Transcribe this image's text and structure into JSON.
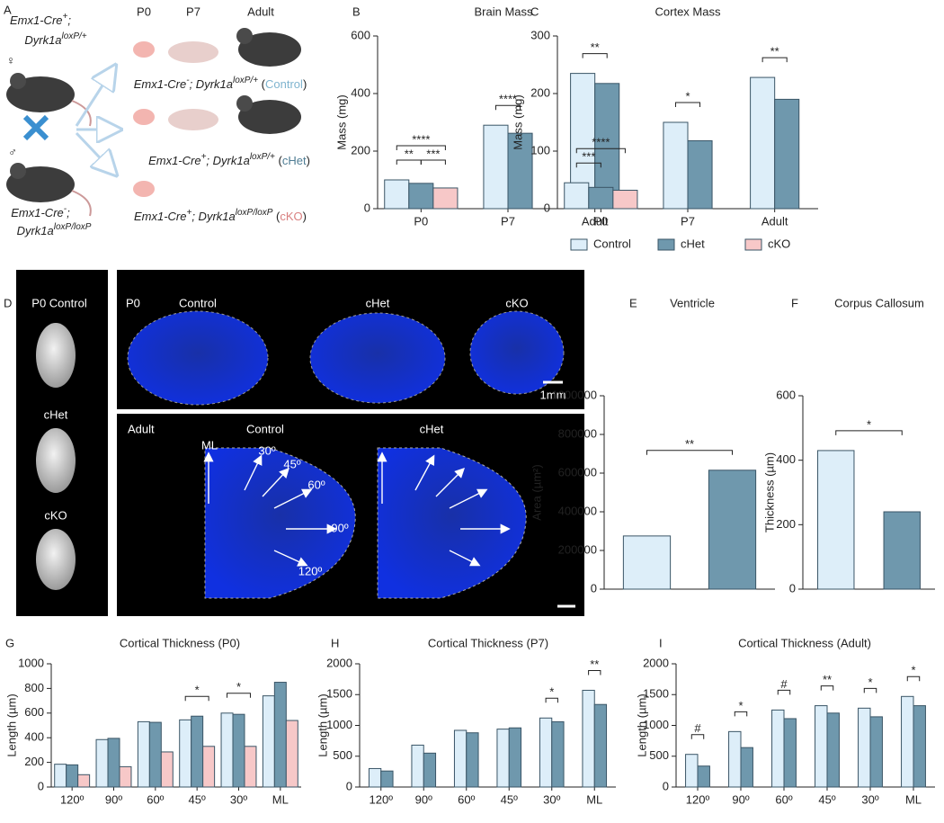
{
  "panel_a": {
    "label": "A",
    "ages": [
      "P0",
      "P7",
      "Adult"
    ],
    "female_symbol": "♀",
    "male_symbol": "♂",
    "female": [
      [
        "Emx1-Cre",
        "+",
        ";"
      ],
      [
        "Dyrk1a",
        "loxP/+"
      ]
    ],
    "male": [
      [
        "Emx1-Cre",
        "-",
        ";"
      ],
      [
        "Dyrk1a",
        "loxP/loxP"
      ]
    ],
    "offspring": [
      {
        "genotype": [
          "Emx1-Cre",
          "-",
          "; Dyrk1a",
          "loxP/+"
        ],
        "open": " (",
        "group": "Control",
        "close": ")",
        "color": "#7fb4cf"
      },
      {
        "genotype": [
          "Emx1-Cre",
          "+",
          "; Dyrk1a",
          "loxP/+"
        ],
        "open": " (",
        "group": "cHet",
        "close": ")",
        "color": "#4f7d94"
      },
      {
        "genotype": [
          "Emx1-Cre",
          "+",
          "; Dyrk1a",
          "loxP/loxP"
        ],
        "open": " (",
        "group": "cKO",
        "close": ")",
        "color": "#d98080"
      }
    ]
  },
  "panel_d": {
    "label": "D",
    "whole_brain": [
      "P0 Control",
      "cHet",
      "cKO"
    ],
    "p0_sections": {
      "age": "P0",
      "groups": [
        "Control",
        "cHet",
        "cKO"
      ],
      "scale": "1mm"
    },
    "adult_sections": {
      "age": "Adult",
      "groups": [
        "Control",
        "cHet"
      ],
      "angles": [
        "ML",
        "30º",
        "45º",
        "60º",
        "90º",
        "120º"
      ]
    }
  },
  "chart_data": [
    {
      "label": "B",
      "type": "bar",
      "title": "Brain Mass",
      "y_label": "Mass (mg)",
      "categories": [
        "P0",
        "P7",
        "Adult"
      ],
      "series": [
        {
          "color": "#ddeef9",
          "values": [
            100,
            290,
            470
          ]
        },
        {
          "color": "#6f98ad",
          "values": [
            88,
            262,
            435
          ]
        },
        {
          "color": "#f7c8c8",
          "values": [
            72,
            null,
            null
          ]
        }
      ],
      "ylim": [
        0,
        600
      ],
      "yticks": [
        0,
        200,
        400,
        600
      ],
      "annotations": [
        "**",
        "****",
        "****",
        "**",
        "***"
      ]
    },
    {
      "label": "C",
      "type": "bar",
      "title": "Cortex Mass",
      "y_label": "Mass (mg)",
      "categories": [
        "P0",
        "P7",
        "Adult"
      ],
      "series": [
        {
          "name": "Control",
          "color": "#ddeef9",
          "values": [
            45,
            150,
            228
          ]
        },
        {
          "name": "cHet",
          "color": "#6f98ad",
          "values": [
            37,
            118,
            190
          ]
        },
        {
          "name": "cKO",
          "color": "#f7c8c8",
          "values": [
            32,
            null,
            null
          ]
        }
      ],
      "ylim": [
        0,
        300
      ],
      "yticks": [
        0,
        100,
        200,
        300
      ],
      "legend": "bottom",
      "annotations": [
        "****",
        "***",
        "*",
        "**"
      ]
    },
    {
      "label": "E",
      "type": "bar",
      "title": "Ventricle",
      "y_label": "Area (µm²)",
      "categories": [
        null,
        null
      ],
      "values": [
        275000,
        615000
      ],
      "colors": [
        "#ddeef9",
        "#6f98ad"
      ],
      "ylim": [
        0,
        1000000
      ],
      "yticks": [
        0,
        200000,
        400000,
        600000,
        800000,
        1000000
      ],
      "annotations": [
        "**"
      ]
    },
    {
      "label": "F",
      "type": "bar",
      "title": "Corpus Callosum",
      "y_label": "Thickness (µm)",
      "categories": [
        null,
        null
      ],
      "values": [
        430,
        240
      ],
      "colors": [
        "#ddeef9",
        "#6f98ad"
      ],
      "ylim": [
        0,
        600
      ],
      "yticks": [
        0,
        200,
        400,
        600
      ],
      "annotations": [
        "*"
      ]
    },
    {
      "label": "G",
      "type": "bar",
      "title": "Cortical Thickness (P0)",
      "y_label": "Length (µm)",
      "categories": [
        "120º",
        "90º",
        "60º",
        "45º",
        "30º",
        "ML"
      ],
      "series": [
        {
          "color": "#ddeef9",
          "values": [
            185,
            385,
            530,
            545,
            600,
            740
          ]
        },
        {
          "color": "#6f98ad",
          "values": [
            180,
            395,
            525,
            575,
            590,
            850
          ]
        },
        {
          "color": "#f7c8c8",
          "values": [
            100,
            165,
            285,
            330,
            330,
            540
          ]
        }
      ],
      "ylim": [
        0,
        1000
      ],
      "yticks": [
        0,
        200,
        400,
        600,
        800,
        1000
      ],
      "annotations": [
        "*",
        "*"
      ]
    },
    {
      "label": "H",
      "type": "bar",
      "title": "Cortical Thickness (P7)",
      "y_label": "Length (µm)",
      "categories": [
        "120º",
        "90º",
        "60º",
        "45º",
        "30º",
        "ML"
      ],
      "series": [
        {
          "color": "#ddeef9",
          "values": [
            300,
            680,
            920,
            940,
            1120,
            1570
          ]
        },
        {
          "color": "#6f98ad",
          "values": [
            260,
            550,
            880,
            960,
            1060,
            1340
          ]
        }
      ],
      "ylim": [
        0,
        2000
      ],
      "yticks": [
        0,
        500,
        1000,
        1500,
        2000
      ],
      "annotations": [
        "*",
        "**"
      ]
    },
    {
      "label": "I",
      "type": "bar",
      "title": "Cortical Thickness (Adult)",
      "y_label": "Length (µm)",
      "categories": [
        "120º",
        "90º",
        "60º",
        "45º",
        "30º",
        "ML"
      ],
      "series": [
        {
          "color": "#ddeef9",
          "values": [
            530,
            900,
            1250,
            1320,
            1280,
            1470
          ]
        },
        {
          "color": "#6f98ad",
          "values": [
            340,
            640,
            1110,
            1200,
            1140,
            1320
          ]
        }
      ],
      "ylim": [
        0,
        2000
      ],
      "yticks": [
        0,
        500,
        1000,
        1500,
        2000
      ],
      "annotations": [
        "#",
        "*",
        "#",
        "**",
        "*",
        "*"
      ]
    }
  ]
}
